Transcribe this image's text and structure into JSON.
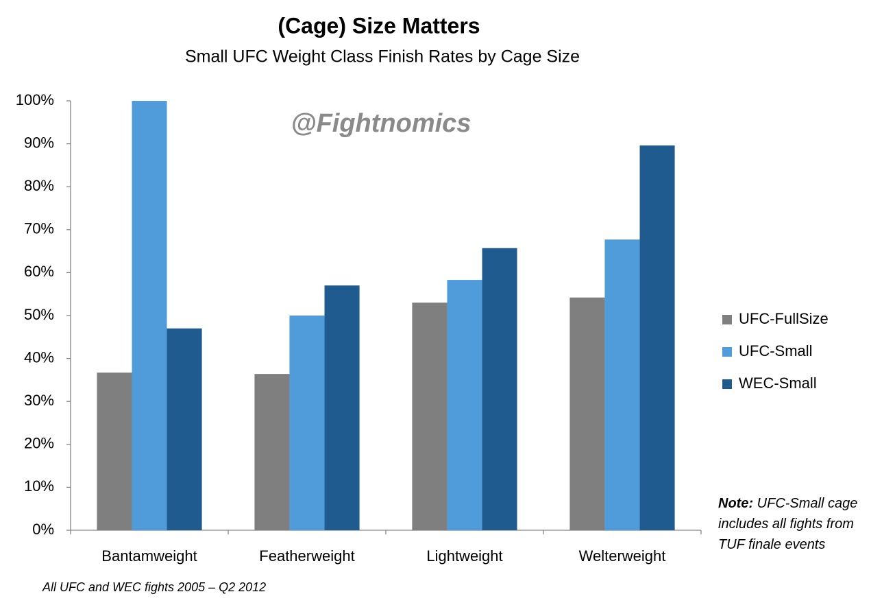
{
  "chart_data": {
    "type": "bar",
    "title": "(Cage) Size Matters",
    "subtitle": "Small UFC Weight Class Finish Rates by Cage Size",
    "watermark": "@Fightnomics",
    "note": {
      "label": "Note:",
      "lines": [
        "UFC-Small cage",
        "includes all fights from",
        "TUF finale events"
      ]
    },
    "footnote": "All UFC and WEC fights 2005 – Q2 2012",
    "categories": [
      "Bantamweight",
      "Featherweight",
      "Lightweight",
      "Welterweight"
    ],
    "series": [
      {
        "name": "UFC-FullSize",
        "color": "#7f7f7f",
        "values": [
          36.7,
          36.4,
          53,
          54.2
        ]
      },
      {
        "name": "UFC-Small",
        "color": "#509cdb",
        "values": [
          100,
          50,
          58.3,
          67.7
        ]
      },
      {
        "name": "WEC-Small",
        "color": "#1f5b8f",
        "values": [
          47,
          57,
          65.7,
          89.6
        ]
      }
    ],
    "ylim": [
      0,
      100
    ],
    "yticks": [
      {
        "value": 0,
        "label": "0%"
      },
      {
        "value": 10,
        "label": "10%"
      },
      {
        "value": 20,
        "label": "20%"
      },
      {
        "value": 30,
        "label": "30%"
      },
      {
        "value": 40,
        "label": "40%"
      },
      {
        "value": 50,
        "label": "50%"
      },
      {
        "value": 60,
        "label": "60%"
      },
      {
        "value": 70,
        "label": "70%"
      },
      {
        "value": 80,
        "label": "80%"
      },
      {
        "value": 90,
        "label": "90%"
      },
      {
        "value": 100,
        "label": "100%"
      }
    ],
    "grid": false,
    "legend": "right"
  }
}
